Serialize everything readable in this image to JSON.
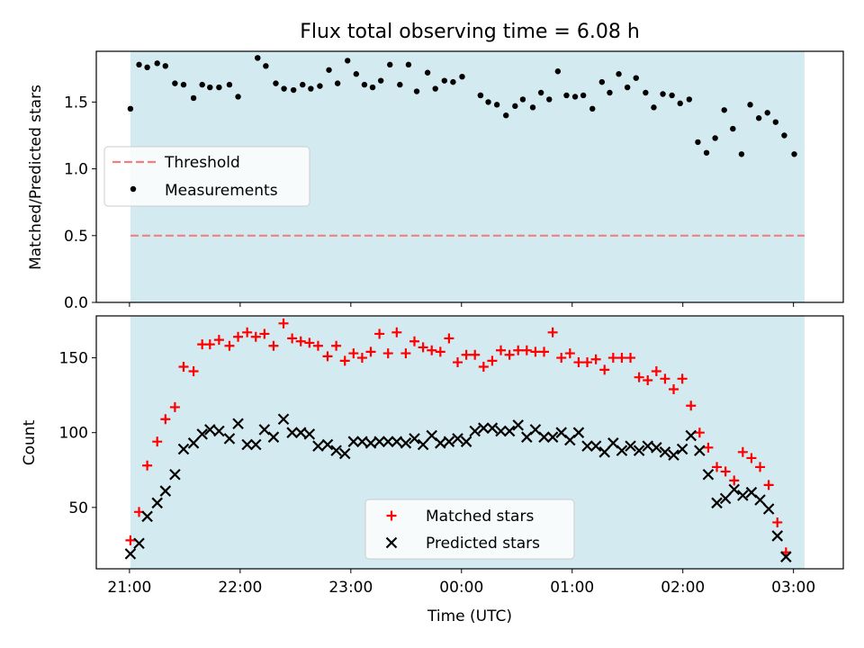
{
  "chart_data": {
    "type": "scatter",
    "title": "Flux total observing time = 6.08 h",
    "xlabel": "Time (UTC)",
    "x_tick_labels": [
      "21:00",
      "22:00",
      "23:00",
      "00:00",
      "01:00",
      "02:00",
      "03:00"
    ],
    "x_tick_hours": [
      0,
      1,
      2,
      3,
      4,
      5,
      6
    ],
    "xlim_hours": [
      -0.3,
      6.45
    ],
    "shaded_span_hours": [
      0.0083,
      6.1
    ],
    "shade_color": "#d4eaf1",
    "top": {
      "ylabel": "Matched/Predicted stars",
      "ylim": [
        0,
        1.88
      ],
      "yticks": [
        0.0,
        0.5,
        1.0,
        1.5
      ],
      "ytick_labels": [
        "0.0",
        "0.5",
        "1.0",
        "1.5"
      ],
      "threshold": 0.5,
      "threshold_color": "#f08080",
      "legend": [
        "Threshold",
        "Measurements"
      ],
      "measurements": [
        {
          "x": 0.0083,
          "y": 1.45
        },
        {
          "x": 0.0863,
          "y": 1.78
        },
        {
          "x": 0.1604,
          "y": 1.76
        },
        {
          "x": 0.2506,
          "y": 1.79
        },
        {
          "x": 0.3247,
          "y": 1.77
        },
        {
          "x": 0.4107,
          "y": 1.64
        },
        {
          "x": 0.4887,
          "y": 1.63
        },
        {
          "x": 0.5789,
          "y": 1.53
        },
        {
          "x": 0.657,
          "y": 1.63
        },
        {
          "x": 0.727,
          "y": 1.61
        },
        {
          "x": 0.809,
          "y": 1.61
        },
        {
          "x": 0.9032,
          "y": 1.63
        },
        {
          "x": 0.9813,
          "y": 1.54
        },
        {
          "x": 1.1578,
          "y": 1.83
        },
        {
          "x": 1.1578,
          "y": 1.83
        },
        {
          "x": 1.2319,
          "y": 1.77
        },
        {
          "x": 1.3221,
          "y": 1.64
        },
        {
          "x": 1.3962,
          "y": 1.6
        },
        {
          "x": 1.4822,
          "y": 1.59
        },
        {
          "x": 1.5643,
          "y": 1.63
        },
        {
          "x": 1.6384,
          "y": 1.6
        },
        {
          "x": 1.7205,
          "y": 1.62
        },
        {
          "x": 1.8025,
          "y": 1.74
        },
        {
          "x": 1.8806,
          "y": 1.64
        },
        {
          "x": 1.9707,
          "y": 1.81
        },
        {
          "x": 2.0488,
          "y": 1.71
        },
        {
          "x": 2.1229,
          "y": 1.63
        },
        {
          "x": 2.197,
          "y": 1.61
        },
        {
          "x": 2.2711,
          "y": 1.66
        },
        {
          "x": 2.3532,
          "y": 1.78
        },
        {
          "x": 2.4433,
          "y": 1.63
        },
        {
          "x": 2.5214,
          "y": 1.78
        },
        {
          "x": 2.5955,
          "y": 1.58
        },
        {
          "x": 2.6936,
          "y": 1.72
        },
        {
          "x": 2.7636,
          "y": 1.6
        },
        {
          "x": 2.8457,
          "y": 1.66
        },
        {
          "x": 2.9238,
          "y": 1.65
        },
        {
          "x": 3.0058,
          "y": 1.69
        },
        {
          "x": 3.1719,
          "y": 1.55
        },
        {
          "x": 3.1719,
          "y": 1.55
        },
        {
          "x": 3.242,
          "y": 1.5
        },
        {
          "x": 3.3201,
          "y": 1.48
        },
        {
          "x": 3.4021,
          "y": 1.4
        },
        {
          "x": 3.4842,
          "y": 1.47
        },
        {
          "x": 3.5543,
          "y": 1.52
        },
        {
          "x": 3.6444,
          "y": 1.46
        },
        {
          "x": 3.7185,
          "y": 1.57
        },
        {
          "x": 3.7926,
          "y": 1.52
        },
        {
          "x": 3.8707,
          "y": 1.73
        },
        {
          "x": 3.9488,
          "y": 1.55
        },
        {
          "x": 4.0268,
          "y": 1.54
        },
        {
          "x": 4.1009,
          "y": 1.55
        },
        {
          "x": 4.183,
          "y": 1.45
        },
        {
          "x": 4.2691,
          "y": 1.65
        },
        {
          "x": 4.3392,
          "y": 1.57
        },
        {
          "x": 4.4213,
          "y": 1.71
        },
        {
          "x": 4.4993,
          "y": 1.61
        },
        {
          "x": 4.5774,
          "y": 1.68
        },
        {
          "x": 4.6636,
          "y": 1.57
        },
        {
          "x": 4.7377,
          "y": 1.46
        },
        {
          "x": 4.8197,
          "y": 1.56
        },
        {
          "x": 4.9018,
          "y": 1.55
        },
        {
          "x": 4.9758,
          "y": 1.49
        },
        {
          "x": 5.0579,
          "y": 1.52
        },
        {
          "x": 5.136,
          "y": 1.2
        },
        {
          "x": 5.2141,
          "y": 1.12
        },
        {
          "x": 5.2922,
          "y": 1.23
        },
        {
          "x": 5.3742,
          "y": 1.44
        },
        {
          "x": 5.4523,
          "y": 1.3
        },
        {
          "x": 5.5304,
          "y": 1.11
        },
        {
          "x": 5.6085,
          "y": 1.48
        },
        {
          "x": 5.6866,
          "y": 1.38
        },
        {
          "x": 5.7646,
          "y": 1.42
        },
        {
          "x": 5.8387,
          "y": 1.35
        },
        {
          "x": 5.9168,
          "y": 1.25
        },
        {
          "x": 6.0069,
          "y": 1.11
        }
      ]
    },
    "bottom": {
      "ylabel": "Count",
      "ylim": [
        9,
        178
      ],
      "yticks": [
        50,
        100,
        150
      ],
      "ytick_labels": [
        "50",
        "100",
        "150"
      ],
      "legend": [
        "Matched stars",
        "Predicted stars"
      ],
      "matched_color": "#ff0000",
      "predicted_color": "#000000",
      "matched": [
        [
          0.0083,
          28
        ],
        [
          0.0863,
          47
        ],
        [
          0.1604,
          78
        ],
        [
          0.2506,
          94
        ],
        [
          0.3247,
          109
        ],
        [
          0.4107,
          117
        ],
        [
          0.4887,
          144
        ],
        [
          0.5789,
          141
        ],
        [
          0.657,
          159
        ],
        [
          0.727,
          159
        ],
        [
          0.809,
          162
        ],
        [
          0.9032,
          158
        ],
        [
          0.9813,
          164
        ],
        [
          1.0634,
          167
        ],
        [
          1.1415,
          164
        ],
        [
          1.2195,
          166
        ],
        [
          1.3016,
          158
        ],
        [
          1.3917,
          173
        ],
        [
          1.4698,
          163
        ],
        [
          1.5479,
          161
        ],
        [
          1.626,
          160
        ],
        [
          1.7041,
          158
        ],
        [
          1.7901,
          151
        ],
        [
          1.8682,
          158
        ],
        [
          1.9463,
          148
        ],
        [
          2.0244,
          153
        ],
        [
          2.1024,
          150
        ],
        [
          2.1805,
          154
        ],
        [
          2.2586,
          166
        ],
        [
          2.3367,
          153
        ],
        [
          2.4148,
          167
        ],
        [
          2.4968,
          153
        ],
        [
          2.5749,
          161
        ],
        [
          2.653,
          157
        ],
        [
          2.7311,
          155
        ],
        [
          2.8091,
          154
        ],
        [
          2.8872,
          163
        ],
        [
          2.9653,
          147
        ],
        [
          3.0434,
          152
        ],
        [
          3.1214,
          152
        ],
        [
          3.1995,
          144
        ],
        [
          3.2776,
          148
        ],
        [
          3.3557,
          155
        ],
        [
          3.4338,
          152
        ],
        [
          3.5118,
          155
        ],
        [
          3.5899,
          155
        ],
        [
          3.668,
          154
        ],
        [
          3.7461,
          154
        ],
        [
          3.8241,
          167
        ],
        [
          3.9022,
          150
        ],
        [
          3.9803,
          153
        ],
        [
          4.0584,
          147
        ],
        [
          4.1365,
          147
        ],
        [
          4.2145,
          149
        ],
        [
          4.2926,
          142
        ],
        [
          4.3707,
          150
        ],
        [
          4.4488,
          150
        ],
        [
          4.5269,
          150
        ],
        [
          4.6049,
          137
        ],
        [
          4.683,
          135
        ],
        [
          4.7611,
          141
        ],
        [
          4.8392,
          136
        ],
        [
          4.9172,
          129
        ],
        [
          4.9953,
          136
        ],
        [
          5.0734,
          118
        ],
        [
          5.1515,
          100
        ],
        [
          5.2295,
          90
        ],
        [
          5.3076,
          77
        ],
        [
          5.3857,
          74
        ],
        [
          5.4638,
          68
        ],
        [
          5.5418,
          87
        ],
        [
          5.6199,
          83
        ],
        [
          5.698,
          77
        ],
        [
          5.7761,
          65
        ],
        [
          5.8542,
          40
        ],
        [
          5.9322,
          20
        ]
      ],
      "predicted": [
        [
          0.0083,
          19
        ],
        [
          0.0863,
          26
        ],
        [
          0.1604,
          44
        ],
        [
          0.2506,
          53
        ],
        [
          0.3247,
          61
        ],
        [
          0.4107,
          72
        ],
        [
          0.4887,
          89
        ],
        [
          0.5789,
          93
        ],
        [
          0.657,
          99
        ],
        [
          0.727,
          102
        ],
        [
          0.809,
          101
        ],
        [
          0.9032,
          96
        ],
        [
          0.9813,
          106
        ],
        [
          1.0634,
          92
        ],
        [
          1.1415,
          92
        ],
        [
          1.2195,
          102
        ],
        [
          1.3016,
          97
        ],
        [
          1.3917,
          109
        ],
        [
          1.4698,
          100
        ],
        [
          1.5479,
          100
        ],
        [
          1.626,
          99
        ],
        [
          1.7041,
          91
        ],
        [
          1.7901,
          92
        ],
        [
          1.8682,
          88
        ],
        [
          1.9463,
          86
        ],
        [
          2.0244,
          94
        ],
        [
          2.1024,
          94
        ],
        [
          2.1805,
          93
        ],
        [
          2.2586,
          94
        ],
        [
          2.3367,
          94
        ],
        [
          2.4148,
          94
        ],
        [
          2.4968,
          93
        ],
        [
          2.5749,
          96
        ],
        [
          2.653,
          92
        ],
        [
          2.7311,
          98
        ],
        [
          2.8091,
          93
        ],
        [
          2.8872,
          94
        ],
        [
          2.9653,
          96
        ],
        [
          3.0434,
          94
        ],
        [
          3.1214,
          101
        ],
        [
          3.1995,
          103
        ],
        [
          3.2776,
          103
        ],
        [
          3.3557,
          101
        ],
        [
          3.4338,
          101
        ],
        [
          3.5118,
          105
        ],
        [
          3.5899,
          97
        ],
        [
          3.668,
          102
        ],
        [
          3.7461,
          97
        ],
        [
          3.8241,
          97
        ],
        [
          3.9022,
          100
        ],
        [
          3.9803,
          95
        ],
        [
          4.0584,
          100
        ],
        [
          4.1365,
          91
        ],
        [
          4.2145,
          91
        ],
        [
          4.2926,
          87
        ],
        [
          4.3707,
          93
        ],
        [
          4.4488,
          88
        ],
        [
          4.5269,
          91
        ],
        [
          4.6049,
          88
        ],
        [
          4.683,
          91
        ],
        [
          4.7611,
          90
        ],
        [
          4.8392,
          87
        ],
        [
          4.9172,
          85
        ],
        [
          4.9953,
          89
        ],
        [
          5.0734,
          98
        ],
        [
          5.1515,
          88
        ],
        [
          5.2295,
          72
        ],
        [
          5.3076,
          53
        ],
        [
          5.3857,
          56
        ],
        [
          5.4638,
          62
        ],
        [
          5.5418,
          58
        ],
        [
          5.6199,
          60
        ],
        [
          5.698,
          55
        ],
        [
          5.7761,
          49
        ],
        [
          5.8542,
          31
        ],
        [
          5.9322,
          17
        ]
      ]
    }
  }
}
